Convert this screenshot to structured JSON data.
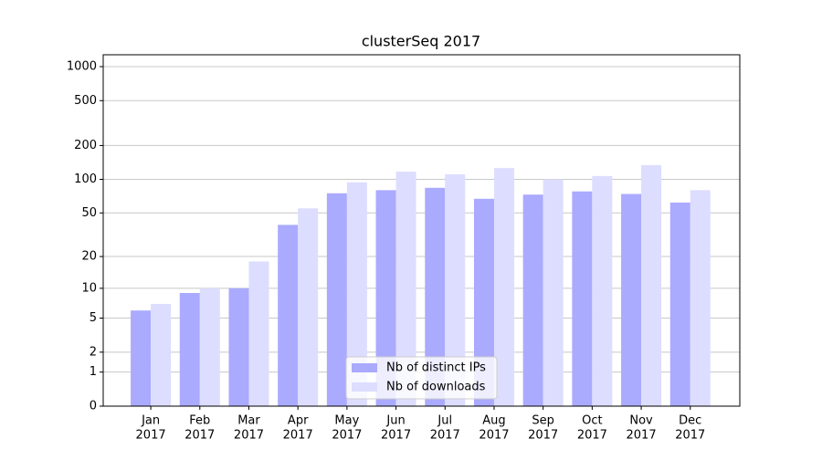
{
  "chart_data": {
    "type": "bar",
    "title": "clusterSeq 2017",
    "categories": [
      [
        "Jan",
        "2017"
      ],
      [
        "Feb",
        "2017"
      ],
      [
        "Mar",
        "2017"
      ],
      [
        "Apr",
        "2017"
      ],
      [
        "May",
        "2017"
      ],
      [
        "Jun",
        "2017"
      ],
      [
        "Jul",
        "2017"
      ],
      [
        "Aug",
        "2017"
      ],
      [
        "Sep",
        "2017"
      ],
      [
        "Oct",
        "2017"
      ],
      [
        "Nov",
        "2017"
      ],
      [
        "Dec",
        "2017"
      ]
    ],
    "series": [
      {
        "name": "Nb of distinct IPs",
        "color": "#aaaaff",
        "values": [
          6,
          9,
          10,
          39,
          75,
          80,
          84,
          67,
          73,
          78,
          74,
          62
        ]
      },
      {
        "name": "Nb of downloads",
        "color": "#ddddff",
        "values": [
          7,
          10,
          18,
          55,
          94,
          117,
          111,
          126,
          100,
          107,
          134,
          80
        ]
      }
    ],
    "y_scale": "log1p",
    "ylim": [
      0,
      1273
    ],
    "yticks": [
      0,
      1,
      2,
      5,
      10,
      20,
      50,
      100,
      200,
      500,
      1000
    ],
    "grid": true,
    "legend": "lower center"
  }
}
